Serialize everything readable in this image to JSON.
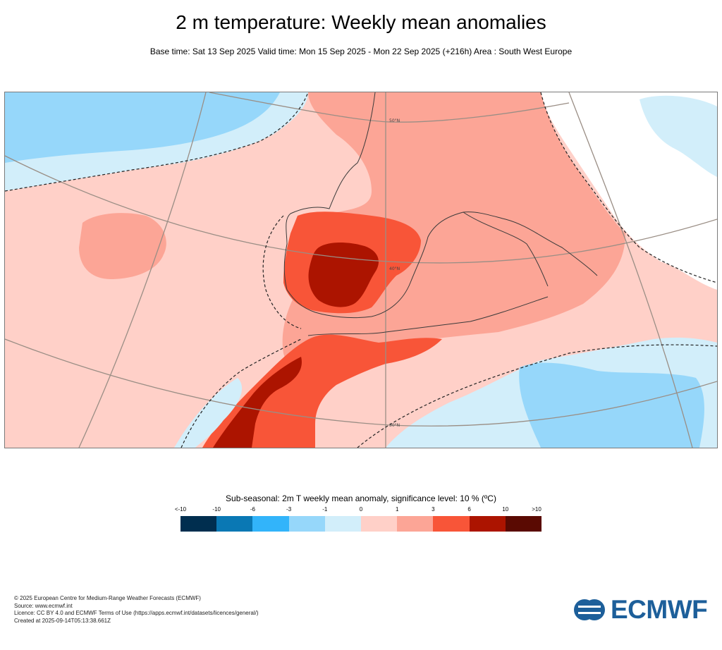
{
  "header": {
    "title": "2 m temperature: Weekly mean anomalies",
    "subtitle": "Base time: Sat 13 Sep 2025 Valid time: Mon 15 Sep 2025 - Mon 22 Sep 2025 (+216h) Area : South West Europe"
  },
  "map": {
    "grid_labels": [
      "50°N",
      "40°N",
      "30°N"
    ],
    "anomaly_level_colors": {
      "lt_-10": "#002e4f",
      "-10_-6": "#0a78b4",
      "-6_-3": "#32b4fa",
      "-3_-1": "#96d7fa",
      "-1_0": "#d2eefa",
      "0_1": "#ffd0c8",
      "1_3": "#fca596",
      "3_6": "#f85538",
      "6_10": "#ac1400",
      "gt_10": "#5a0a02"
    }
  },
  "legend": {
    "title": "Sub-seasonal: 2m T weekly mean anomaly, significance level: 10 % (ºC)",
    "ticks": [
      "<-10",
      "-10",
      "-6",
      "-3",
      "-1",
      "0",
      "1",
      "3",
      "6",
      "10",
      ">10"
    ],
    "colors": [
      "#002e4f",
      "#0a78b4",
      "#32b4fa",
      "#96d7fa",
      "#d2eefa",
      "#ffd0c8",
      "#fca596",
      "#f85538",
      "#ac1400",
      "#5a0a02"
    ]
  },
  "footer": {
    "line1": "© 2025 European Centre for Medium-Range Weather Forecasts (ECMWF)",
    "line2": "Source: www.ecmwf.int",
    "line3": "Licence: CC BY 4.0 and ECMWF Terms of Use (https://apps.ecmwf.int/datasets/licences/general/)",
    "line4": "Created at 2025-09-14T05:13:38.661Z"
  },
  "logo": {
    "text": "ECMWF",
    "color": "#1d5f9a"
  }
}
